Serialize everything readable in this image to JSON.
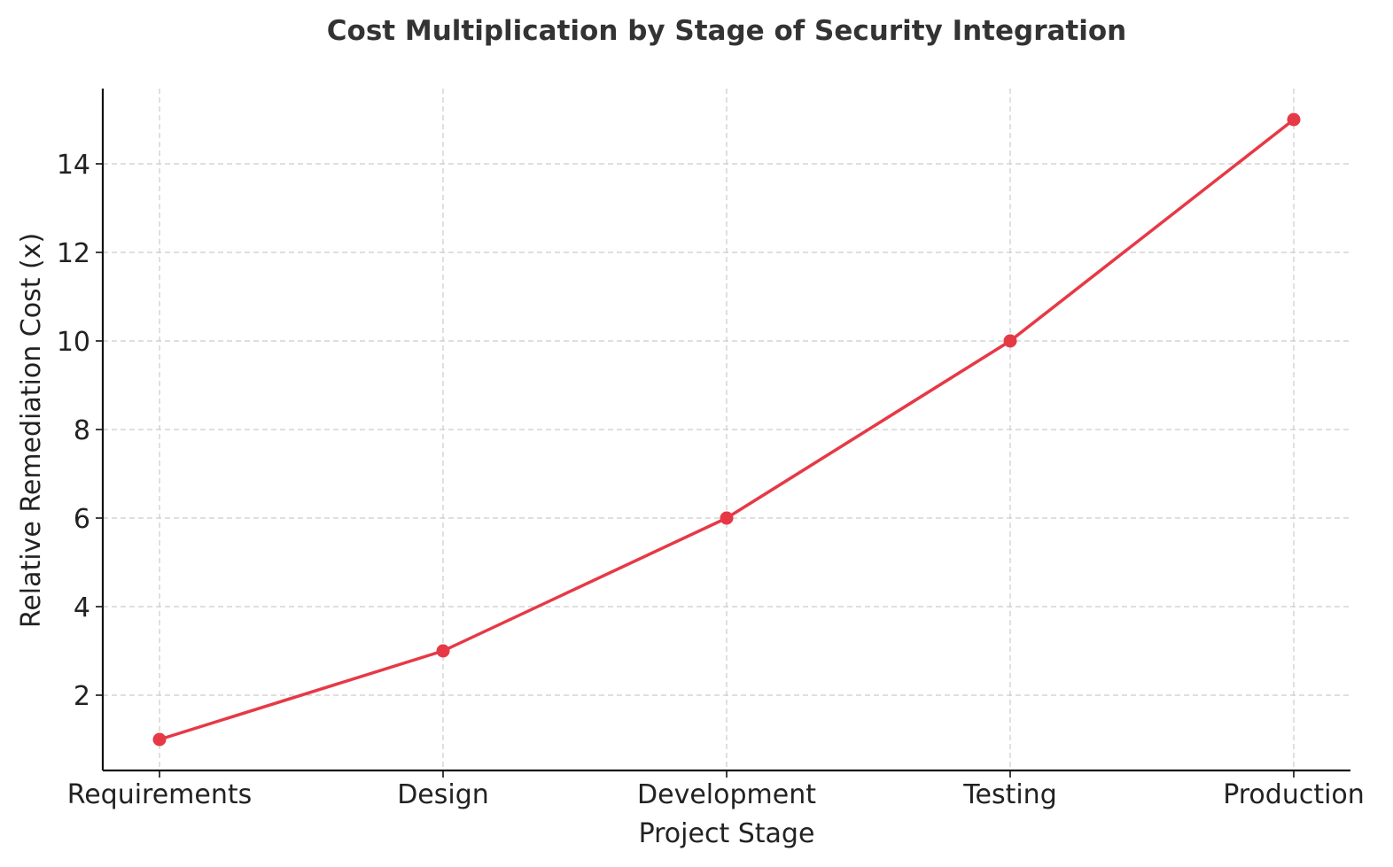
{
  "chart_data": {
    "type": "line",
    "title": "Cost Multiplication by Stage of Security Integration",
    "xlabel": "Project Stage",
    "ylabel": "Relative Remediation Cost (x)",
    "categories": [
      "Requirements",
      "Design",
      "Development",
      "Testing",
      "Production"
    ],
    "series": [
      {
        "values": [
          1,
          3,
          6,
          10,
          15
        ],
        "color": "#e63946"
      }
    ],
    "ylim": [
      0.3,
      15.7
    ],
    "yticks": [
      2,
      4,
      6,
      8,
      10,
      12,
      14
    ],
    "grid": true,
    "marker": "circle"
  }
}
